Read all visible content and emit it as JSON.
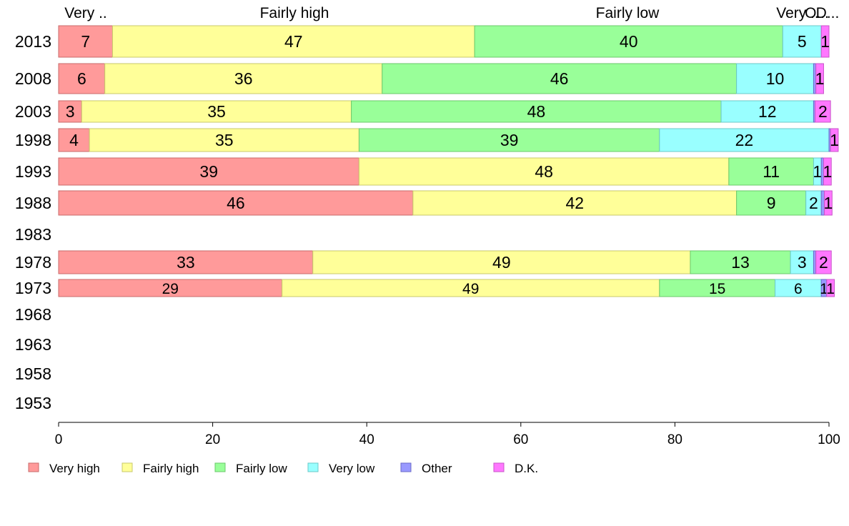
{
  "chart_data": {
    "type": "bar",
    "orientation": "horizontal",
    "stacked": true,
    "categories": [
      "2013",
      "2008",
      "2003",
      "1998",
      "1993",
      "1988",
      "1983",
      "1978",
      "1973",
      "1968",
      "1963",
      "1958",
      "1953"
    ],
    "series": [
      {
        "name": "Very high",
        "color": "#ff9a9a",
        "stroke": "#c86b6b",
        "values": [
          7,
          6,
          3,
          4,
          39,
          46,
          null,
          33,
          29,
          null,
          null,
          null,
          null
        ]
      },
      {
        "name": "Fairly high",
        "color": "#ffff99",
        "stroke": "#c9c96b",
        "values": [
          47,
          36,
          35,
          35,
          48,
          42,
          null,
          49,
          49,
          null,
          null,
          null,
          null
        ]
      },
      {
        "name": "Fairly low",
        "color": "#99ff99",
        "stroke": "#6bc96b",
        "values": [
          40,
          46,
          48,
          39,
          11,
          9,
          null,
          13,
          15,
          null,
          null,
          null,
          null
        ]
      },
      {
        "name": "Very low",
        "color": "#99ffff",
        "stroke": "#6bc9c9",
        "values": [
          5,
          10,
          12,
          22,
          1,
          2,
          null,
          3,
          6,
          null,
          null,
          null,
          null
        ]
      },
      {
        "name": "Other",
        "color": "#9999ff",
        "stroke": "#6b6bc9",
        "values": [
          0,
          0.3,
          0.2,
          0.2,
          0.3,
          0.4,
          null,
          0.3,
          0.7,
          null,
          null,
          null,
          null
        ]
      },
      {
        "name": "D.K.",
        "color": "#ff77ff",
        "stroke": "#c955c9",
        "values": [
          1,
          1,
          2,
          1,
          1,
          1,
          null,
          2,
          1,
          null,
          null,
          null,
          null
        ]
      }
    ],
    "data_labels": [
      [
        "7",
        "47",
        "40",
        "5",
        "",
        "1"
      ],
      [
        "6",
        "36",
        "46",
        "10",
        "",
        "1"
      ],
      [
        "3",
        "35",
        "48",
        "12",
        "",
        "2"
      ],
      [
        "4",
        "35",
        "39",
        "22",
        "",
        "1"
      ],
      [
        "39",
        "48",
        "11",
        "1",
        "",
        "1"
      ],
      [
        "46",
        "42",
        "9",
        "2",
        "",
        "1"
      ],
      [],
      [
        "33",
        "49",
        "13",
        "3",
        "",
        "2"
      ],
      [
        "29",
        "49",
        "15",
        "6",
        "1",
        "1"
      ],
      [],
      [],
      [],
      []
    ],
    "top_labels": [
      "Very ..",
      "Fairly high",
      "Fairly low",
      "Very ..",
      "O...",
      "D..."
    ],
    "xticks": [
      "0",
      "20",
      "40",
      "60",
      "80",
      "100"
    ],
    "xlim": [
      0,
      100
    ],
    "grid": false,
    "legend_position": "bottom",
    "title": "",
    "xlabel": "",
    "ylabel": ""
  }
}
